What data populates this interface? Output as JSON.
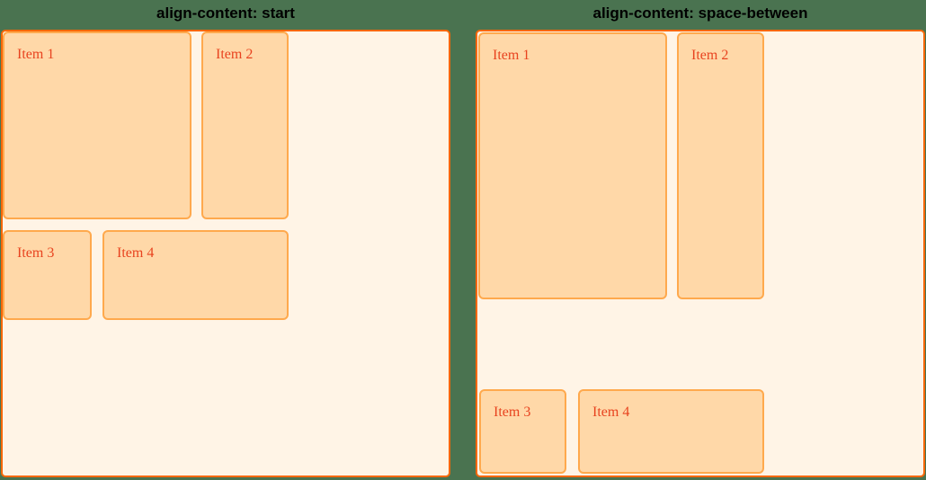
{
  "figure": {
    "description": "CSS align-content comparison figure",
    "colors": {
      "page_background": "#4a7350",
      "container_background": "#fff4e6",
      "container_border": "#f76707",
      "item_background": "#ffd8a8",
      "item_border": "#ffa94d",
      "item_text": "#e8431f",
      "heading_text": "#000000"
    }
  },
  "panels": [
    {
      "title": "align-content: start",
      "align_content": "start",
      "items": [
        {
          "label": "Item 1"
        },
        {
          "label": "Item 2"
        },
        {
          "label": "Item 3"
        },
        {
          "label": "Item 4"
        }
      ]
    },
    {
      "title": "align-content: space-between",
      "align_content": "space-between",
      "items": [
        {
          "label": "Item 1"
        },
        {
          "label": "Item 2"
        },
        {
          "label": "Item 3"
        },
        {
          "label": "Item 4"
        }
      ]
    }
  ]
}
